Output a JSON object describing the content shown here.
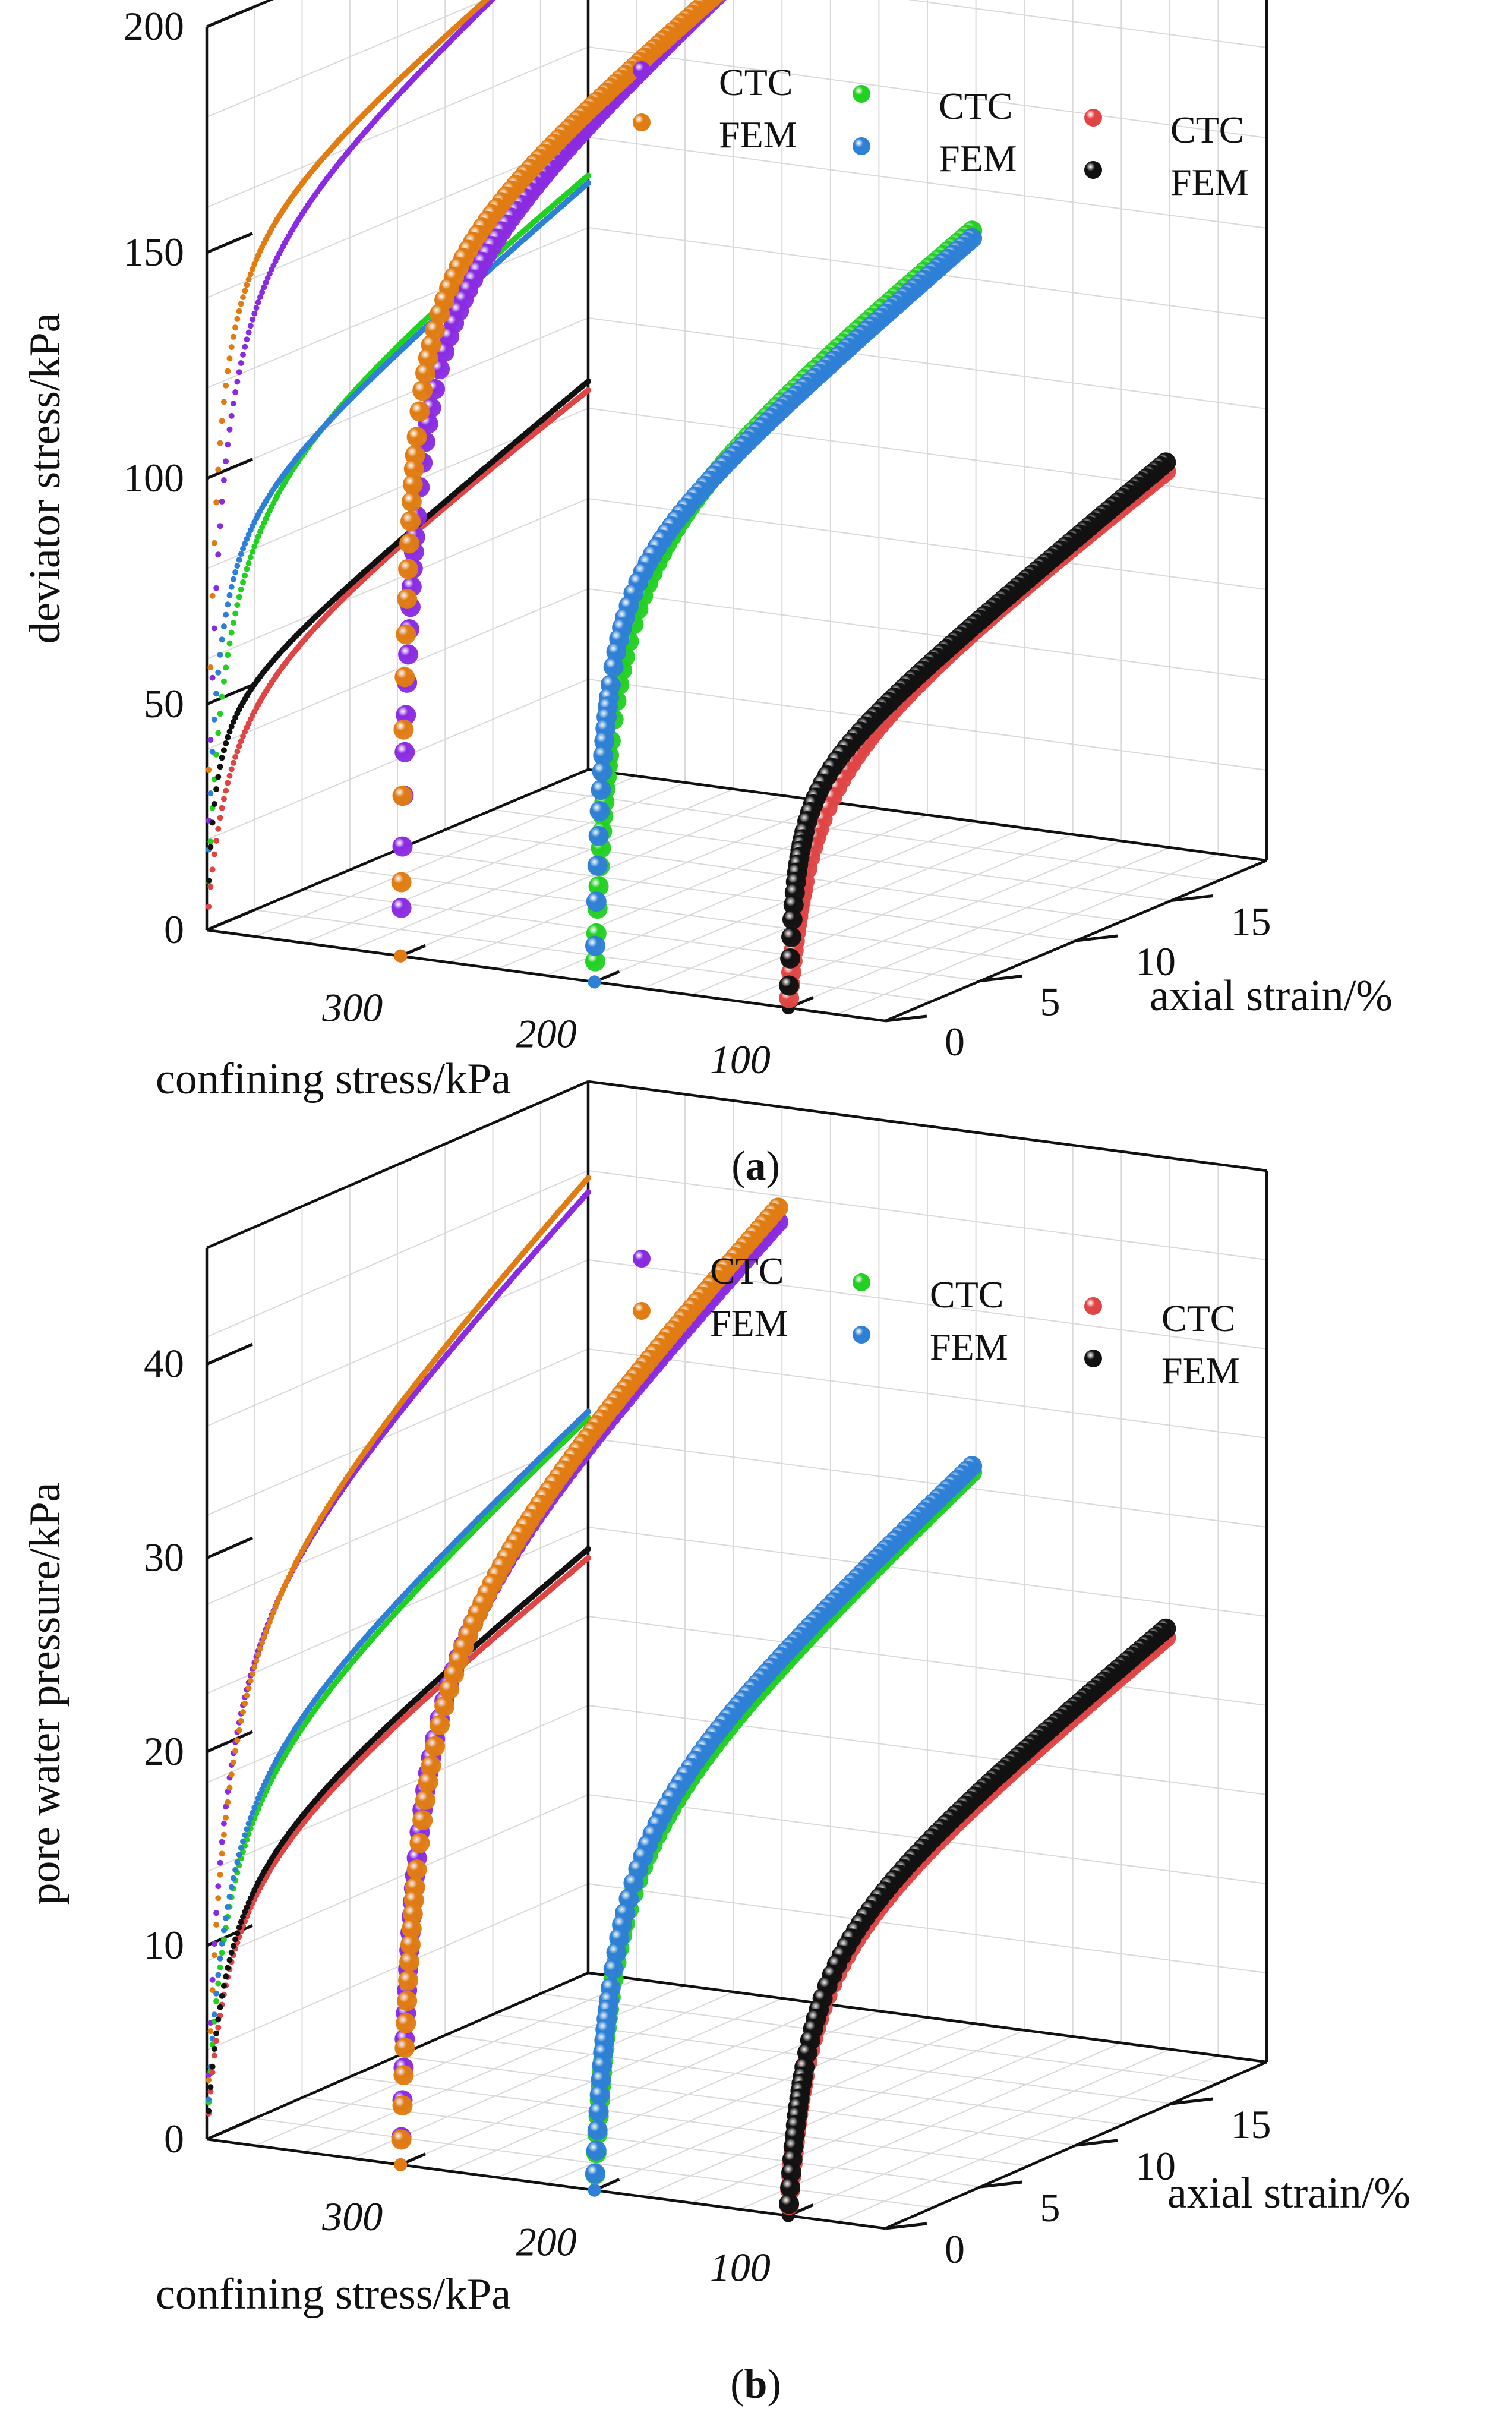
{
  "figure": {
    "captions": [
      "(a)",
      "(b)"
    ],
    "caption_letters": [
      "a",
      "b"
    ]
  },
  "chart_data": [
    {
      "type": "scatter3d",
      "panel": "(a)",
      "zlabel": "deviator stress/kPa",
      "xlabel": "confining stress/kPa",
      "ylabel": "axial strain/%",
      "x_ticks": [
        "300",
        "200",
        "100"
      ],
      "y_ticks": [
        "0",
        "5",
        "10",
        "15"
      ],
      "z_ticks": [
        "0",
        "50",
        "100",
        "150",
        "200"
      ],
      "xlim": [
        50,
        400
      ],
      "ylim": [
        0,
        20
      ],
      "zlim": [
        0,
        200
      ],
      "legend": {
        "position": "top-right",
        "entries": [
          {
            "label": "CTC",
            "color": "#8a2be2"
          },
          {
            "label": "FEM",
            "color": "#e07c12"
          },
          {
            "label": "CTC",
            "color": "#22d022"
          },
          {
            "label": "FEM",
            "color": "#2e7fd6"
          },
          {
            "label": "CTC",
            "color": "#e04545"
          },
          {
            "label": "FEM",
            "color": "#111111"
          }
        ]
      },
      "model": "z = a*y/(b + y) + c*y",
      "series": [
        {
          "name": "CTC",
          "confining_stress": 300,
          "color": "#8a2be2",
          "a": 155,
          "b": 0.55,
          "c": 2.0
        },
        {
          "name": "FEM",
          "confining_stress": 300,
          "color": "#e07c12",
          "a": 158,
          "b": 0.35,
          "c": 1.75
        },
        {
          "name": "CTC",
          "confining_stress": 200,
          "color": "#22d022",
          "a": 104,
          "b": 0.9,
          "c": 1.6
        },
        {
          "name": "FEM",
          "confining_stress": 200,
          "color": "#2e7fd6",
          "a": 96,
          "b": 0.45,
          "c": 1.8
        },
        {
          "name": "CTC",
          "confining_stress": 100,
          "color": "#e04545",
          "a": 58,
          "b": 1.1,
          "c": 1.45
        },
        {
          "name": "FEM",
          "confining_stress": 100,
          "color": "#111111",
          "a": 53,
          "b": 0.4,
          "c": 1.7
        }
      ]
    },
    {
      "type": "scatter3d",
      "panel": "(b)",
      "zlabel": "pore water pressure/kPa",
      "xlabel": "confining stress/kPa",
      "ylabel": "axial strain/%",
      "x_ticks": [
        "300",
        "200",
        "100"
      ],
      "y_ticks": [
        "0",
        "5",
        "10",
        "15"
      ],
      "z_ticks": [
        "0",
        "10",
        "20",
        "30",
        "40"
      ],
      "xlim": [
        50,
        400
      ],
      "ylim": [
        0,
        20
      ],
      "zlim": [
        0,
        46
      ],
      "legend": {
        "position": "top-right",
        "entries": [
          {
            "label": "CTC",
            "color": "#8a2be2"
          },
          {
            "label": "FEM",
            "color": "#e07c12"
          },
          {
            "label": "CTC",
            "color": "#22d022"
          },
          {
            "label": "FEM",
            "color": "#2e7fd6"
          },
          {
            "label": "CTC",
            "color": "#e04545"
          },
          {
            "label": "FEM",
            "color": "#111111"
          }
        ]
      },
      "model": "z = a*y/(b + y) + c*y",
      "series": [
        {
          "name": "CTC",
          "confining_stress": 300,
          "color": "#8a2be2",
          "a": 29,
          "b": 0.8,
          "c": 0.62
        },
        {
          "name": "FEM",
          "confining_stress": 300,
          "color": "#e07c12",
          "a": 29.5,
          "b": 0.9,
          "c": 0.64
        },
        {
          "name": "CTC",
          "confining_stress": 200,
          "color": "#22d022",
          "a": 20,
          "b": 1.0,
          "c": 0.48
        },
        {
          "name": "FEM",
          "confining_stress": 200,
          "color": "#2e7fd6",
          "a": 20.5,
          "b": 0.95,
          "c": 0.47
        },
        {
          "name": "CTC",
          "confining_stress": 100,
          "color": "#e04545",
          "a": 15,
          "b": 1.1,
          "c": 0.36
        },
        {
          "name": "FEM",
          "confining_stress": 100,
          "color": "#111111",
          "a": 15.2,
          "b": 1.0,
          "c": 0.37
        }
      ]
    }
  ]
}
